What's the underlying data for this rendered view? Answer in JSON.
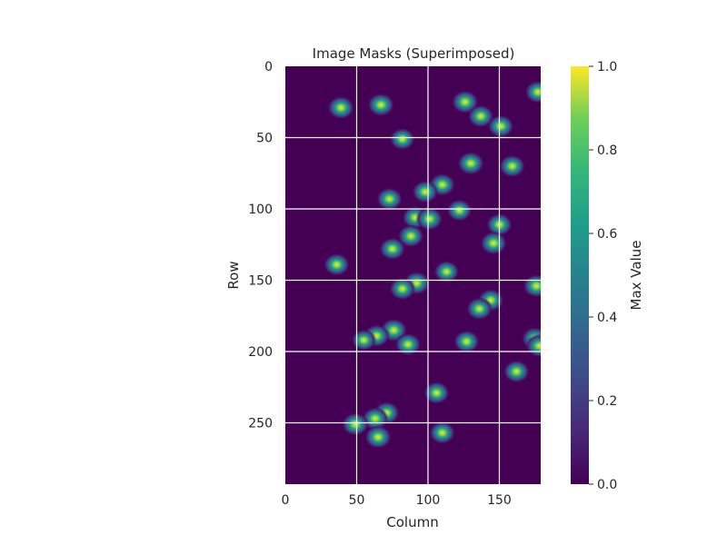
{
  "chart_data": {
    "type": "heatmap",
    "title": "Image Masks (Superimposed)",
    "xlabel": "Column",
    "ylabel": "Row",
    "xlim": [
      0,
      179
    ],
    "ylim": [
      293,
      0
    ],
    "xticks": [
      0,
      50,
      100,
      150
    ],
    "yticks": [
      0,
      50,
      100,
      150,
      200,
      250
    ],
    "grid": true,
    "colormap": "viridis",
    "colorbar": {
      "label": "Max Value",
      "range": [
        0,
        1
      ],
      "ticks": [
        "0.0",
        "0.2",
        "0.4",
        "0.6",
        "0.8",
        "1.0"
      ]
    },
    "blobs": [
      {
        "x": 39,
        "y": 29,
        "v": 1.0
      },
      {
        "x": 67,
        "y": 27,
        "v": 1.0
      },
      {
        "x": 126,
        "y": 25,
        "v": 1.0
      },
      {
        "x": 137,
        "y": 35,
        "v": 0.95
      },
      {
        "x": 151,
        "y": 42,
        "v": 0.95
      },
      {
        "x": 177,
        "y": 18,
        "v": 0.95
      },
      {
        "x": 82,
        "y": 51,
        "v": 0.9
      },
      {
        "x": 130,
        "y": 68,
        "v": 1.0
      },
      {
        "x": 159,
        "y": 70,
        "v": 0.95
      },
      {
        "x": 110,
        "y": 83,
        "v": 0.95
      },
      {
        "x": 98,
        "y": 88,
        "v": 0.95
      },
      {
        "x": 73,
        "y": 93,
        "v": 0.95
      },
      {
        "x": 122,
        "y": 101,
        "v": 0.9
      },
      {
        "x": 91,
        "y": 106,
        "v": 0.95
      },
      {
        "x": 101,
        "y": 107,
        "v": 1.0
      },
      {
        "x": 150,
        "y": 111,
        "v": 0.95
      },
      {
        "x": 88,
        "y": 119,
        "v": 0.95
      },
      {
        "x": 146,
        "y": 124,
        "v": 1.0
      },
      {
        "x": 75,
        "y": 128,
        "v": 0.95
      },
      {
        "x": 36,
        "y": 139,
        "v": 0.95
      },
      {
        "x": 113,
        "y": 144,
        "v": 0.9
      },
      {
        "x": 92,
        "y": 152,
        "v": 1.0
      },
      {
        "x": 82,
        "y": 156,
        "v": 0.95
      },
      {
        "x": 176,
        "y": 154,
        "v": 1.0
      },
      {
        "x": 144,
        "y": 164,
        "v": 0.95
      },
      {
        "x": 136,
        "y": 170,
        "v": 0.95
      },
      {
        "x": 76,
        "y": 185,
        "v": 1.0
      },
      {
        "x": 64,
        "y": 189,
        "v": 0.95
      },
      {
        "x": 55,
        "y": 192,
        "v": 0.85
      },
      {
        "x": 86,
        "y": 195,
        "v": 0.95
      },
      {
        "x": 127,
        "y": 193,
        "v": 0.95
      },
      {
        "x": 175,
        "y": 191,
        "v": 1.0
      },
      {
        "x": 178,
        "y": 196,
        "v": 1.0
      },
      {
        "x": 162,
        "y": 214,
        "v": 0.95
      },
      {
        "x": 106,
        "y": 229,
        "v": 0.95
      },
      {
        "x": 71,
        "y": 243,
        "v": 0.95
      },
      {
        "x": 63,
        "y": 247,
        "v": 0.95
      },
      {
        "x": 49,
        "y": 251,
        "v": 1.0
      },
      {
        "x": 110,
        "y": 257,
        "v": 0.95
      },
      {
        "x": 65,
        "y": 260,
        "v": 1.0
      }
    ]
  }
}
